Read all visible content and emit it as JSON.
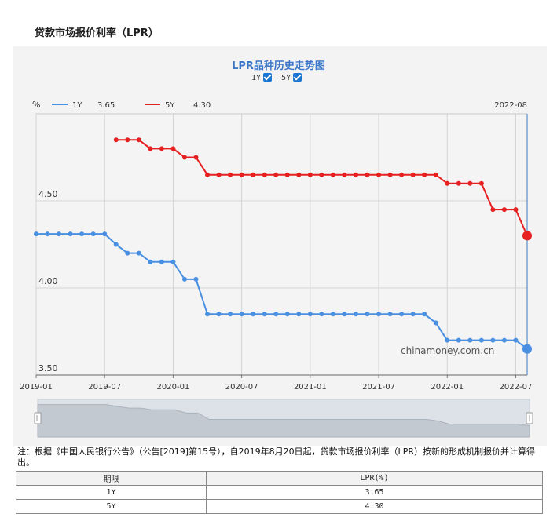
{
  "page": {
    "title": "贷款市场报价利率（LPR）"
  },
  "controls": {
    "toggle_1y_label": "1Y",
    "toggle_5y_label": "5Y",
    "toggle_1y_checked": true,
    "toggle_5y_checked": true
  },
  "legend": {
    "unit": "%",
    "items": [
      {
        "name": "1Y",
        "value": "3.65",
        "color": "#4a90e2"
      },
      {
        "name": "5Y",
        "value": "4.30",
        "color": "#e62020"
      }
    ],
    "current_date": "2022-08"
  },
  "watermark": "chinamoney.com.cn",
  "chart_data": {
    "type": "line",
    "title": "LPR品种历史走势图",
    "ylabel": "%",
    "ylim": [
      3.5,
      5.0
    ],
    "yticks": [
      "3.50",
      "4.00",
      "4.50"
    ],
    "xticks": [
      "2019-01",
      "2019-07",
      "2020-01",
      "2020-07",
      "2021-01",
      "2021-07",
      "2022-01",
      "2022-07"
    ],
    "grid": true,
    "legend_position": "top-left",
    "x": [
      "2019-01",
      "2019-02",
      "2019-03",
      "2019-04",
      "2019-05",
      "2019-06",
      "2019-07",
      "2019-08",
      "2019-09",
      "2019-10",
      "2019-11",
      "2019-12",
      "2020-01",
      "2020-02",
      "2020-03",
      "2020-04",
      "2020-05",
      "2020-06",
      "2020-07",
      "2020-08",
      "2020-09",
      "2020-10",
      "2020-11",
      "2020-12",
      "2021-01",
      "2021-02",
      "2021-03",
      "2021-04",
      "2021-05",
      "2021-06",
      "2021-07",
      "2021-08",
      "2021-09",
      "2021-10",
      "2021-11",
      "2021-12",
      "2022-01",
      "2022-02",
      "2022-03",
      "2022-04",
      "2022-05",
      "2022-06",
      "2022-07",
      "2022-08"
    ],
    "series": [
      {
        "name": "1Y",
        "color": "#4a90e2",
        "values": [
          4.31,
          4.31,
          4.31,
          4.31,
          4.31,
          4.31,
          4.31,
          4.25,
          4.2,
          4.2,
          4.15,
          4.15,
          4.15,
          4.05,
          4.05,
          3.85,
          3.85,
          3.85,
          3.85,
          3.85,
          3.85,
          3.85,
          3.85,
          3.85,
          3.85,
          3.85,
          3.85,
          3.85,
          3.85,
          3.85,
          3.85,
          3.85,
          3.85,
          3.85,
          3.85,
          3.8,
          3.7,
          3.7,
          3.7,
          3.7,
          3.7,
          3.7,
          3.7,
          3.65
        ]
      },
      {
        "name": "5Y",
        "color": "#e62020",
        "values": [
          null,
          null,
          null,
          null,
          null,
          null,
          null,
          4.85,
          4.85,
          4.85,
          4.8,
          4.8,
          4.8,
          4.75,
          4.75,
          4.65,
          4.65,
          4.65,
          4.65,
          4.65,
          4.65,
          4.65,
          4.65,
          4.65,
          4.65,
          4.65,
          4.65,
          4.65,
          4.65,
          4.65,
          4.65,
          4.65,
          4.65,
          4.65,
          4.65,
          4.65,
          4.6,
          4.6,
          4.6,
          4.6,
          4.45,
          4.45,
          4.45,
          4.3
        ]
      }
    ]
  },
  "note": "注：根据《中国人民银行公告》（公告[2019]第15号），自2019年8月20日起，贷款市场报价利率（LPR）按新的形成机制报价并计算得出。",
  "table": {
    "headers": [
      "期限",
      "LPR(%)"
    ],
    "rows": [
      [
        "1Y",
        "3.65"
      ],
      [
        "5Y",
        "4.30"
      ]
    ]
  }
}
